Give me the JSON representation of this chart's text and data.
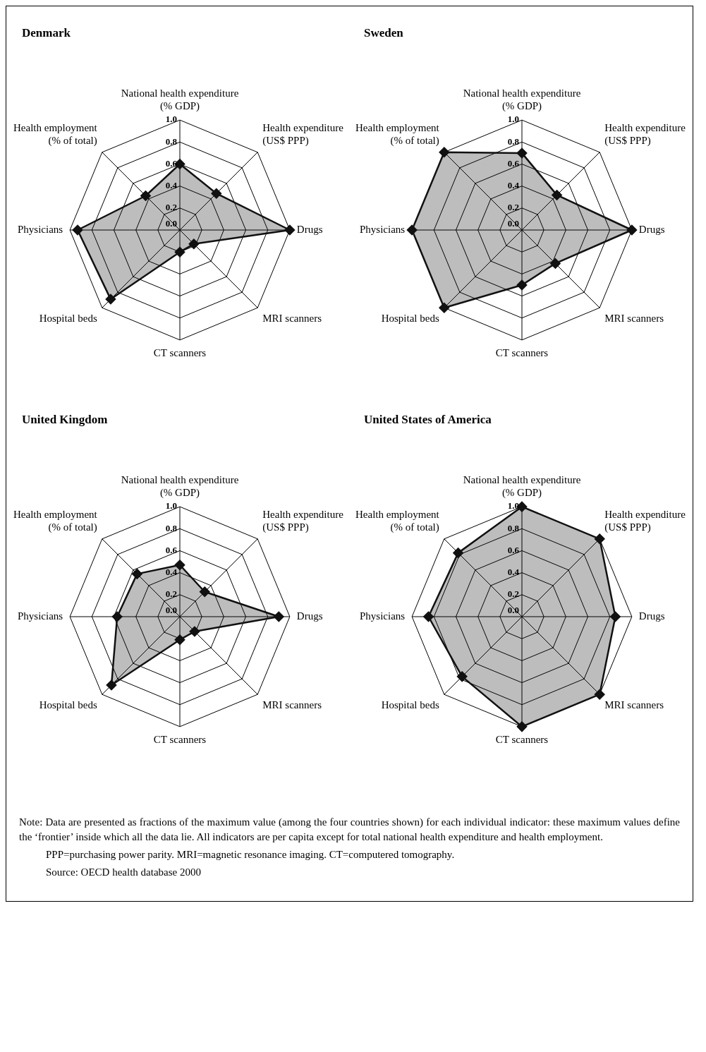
{
  "chart_data": [
    {
      "type": "radar",
      "title": "Denmark",
      "categories": [
        "National health expenditure (% GDP)",
        "Health expenditure (US$ PPP)",
        "Drugs",
        "MRI scanners",
        "CT scanners",
        "Hospital beds",
        "Physicians",
        "Health employment (% of total)"
      ],
      "series": [
        {
          "color": "#111111",
          "values": [
            0.6,
            0.47,
            1.0,
            0.18,
            0.2,
            0.89,
            0.93,
            0.44
          ]
        }
      ],
      "ylim": [
        0,
        1
      ],
      "yticks": [
        {
          "value": 0,
          "label": "0.0"
        },
        {
          "value": 0.2,
          "label": "0.2"
        },
        {
          "value": 0.4,
          "label": "0.4"
        },
        {
          "value": 0.6,
          "label": "0.6"
        },
        {
          "value": 0.8,
          "label": "0.8"
        },
        {
          "value": 1,
          "label": "1.0"
        }
      ],
      "grid": true,
      "marker": "diamond"
    },
    {
      "type": "radar",
      "title": "Sweden",
      "categories": [
        "National health expenditure (% GDP)",
        "Health expenditure (US$ PPP)",
        "Drugs",
        "MRI scanners",
        "CT scanners",
        "Hospital beds",
        "Physicians",
        "Health employment (% of total)"
      ],
      "series": [
        {
          "color": "#111111",
          "values": [
            0.7,
            0.45,
            1.0,
            0.43,
            0.5,
            1.0,
            1.0,
            1.0
          ]
        }
      ],
      "ylim": [
        0,
        1
      ],
      "yticks": [
        {
          "value": 0,
          "label": "0.0"
        },
        {
          "value": 0.2,
          "label": "0.2"
        },
        {
          "value": 0.4,
          "label": "0.4"
        },
        {
          "value": 0.6,
          "label": "0.6"
        },
        {
          "value": 0.8,
          "label": "0.8"
        },
        {
          "value": 1,
          "label": "1.0"
        }
      ],
      "grid": true,
      "marker": "diamond"
    },
    {
      "type": "radar",
      "title": "United Kingdom",
      "categories": [
        "National health expenditure (% GDP)",
        "Health expenditure (US$ PPP)",
        "Drugs",
        "MRI scanners",
        "CT scanners",
        "Hospital beds",
        "Physicians",
        "Health employment (% of total)"
      ],
      "series": [
        {
          "color": "#111111",
          "values": [
            0.47,
            0.32,
            0.9,
            0.19,
            0.21,
            0.88,
            0.57,
            0.55
          ]
        }
      ],
      "ylim": [
        0,
        1
      ],
      "yticks": [
        {
          "value": 0,
          "label": "0.0"
        },
        {
          "value": 0.2,
          "label": "0.2"
        },
        {
          "value": 0.4,
          "label": "0.4"
        },
        {
          "value": 0.6,
          "label": "0.6"
        },
        {
          "value": 0.8,
          "label": "0.8"
        },
        {
          "value": 1,
          "label": "1.0"
        }
      ],
      "grid": true,
      "marker": "diamond"
    },
    {
      "type": "radar",
      "title": "United States of America",
      "categories": [
        "National health expenditure (% GDP)",
        "Health expenditure (US$ PPP)",
        "Drugs",
        "MRI scanners",
        "CT scanners",
        "Hospital beds",
        "Physicians",
        "Health employment (% of total)"
      ],
      "series": [
        {
          "color": "#111111",
          "values": [
            1.0,
            1.0,
            0.85,
            1.0,
            1.0,
            0.77,
            0.85,
            0.82
          ]
        }
      ],
      "ylim": [
        0,
        1
      ],
      "yticks": [
        {
          "value": 0,
          "label": "0.0"
        },
        {
          "value": 0.2,
          "label": "0.2"
        },
        {
          "value": 0.4,
          "label": "0.4"
        },
        {
          "value": 0.6,
          "label": "0.6"
        },
        {
          "value": 0.8,
          "label": "0.8"
        },
        {
          "value": 1,
          "label": "1.0"
        }
      ],
      "grid": true,
      "marker": "diamond",
      "annotations": [
        "Note: Data are presented as fractions of the maximum value (among the four countries shown) for each individual indicator: these maximum values define the ‘frontier’ inside which all the data lie. All indicators are per capita except for total national health expenditure and health employment.",
        "PPP=purchasing power parity. MRI=magnetic resonance imaging. CT=computered tomography.",
        "Source: OECD health database 2000"
      ]
    }
  ]
}
